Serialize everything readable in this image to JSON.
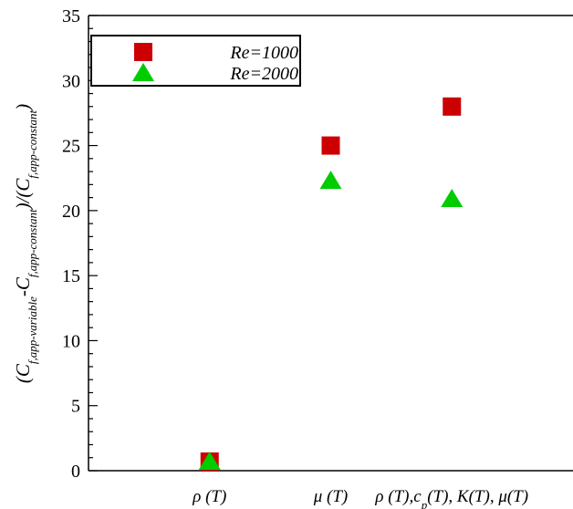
{
  "chart_data": {
    "type": "scatter",
    "categories": [
      "ρ (T)",
      "μ (T)",
      "ρ (T),c_p(T), K(T), μ(T)"
    ],
    "category_parts": [
      [
        {
          "t": "ρ (T)",
          "s": false
        }
      ],
      [
        {
          "t": "μ (T)",
          "s": false
        }
      ],
      [
        {
          "t": "ρ (T),c",
          "s": false
        },
        {
          "t": "p",
          "s": true
        },
        {
          "t": "(T), K(T), μ(T)",
          "s": false
        }
      ]
    ],
    "series": [
      {
        "name": "Re=1000",
        "marker": "square",
        "color": "#cc0000",
        "values": [
          0.7,
          25.0,
          28.0
        ]
      },
      {
        "name": "Re=2000",
        "marker": "triangle",
        "color": "#00cc00",
        "values": [
          0.7,
          22.3,
          20.9
        ]
      }
    ],
    "ylabel_parts": [
      {
        "t": "(C",
        "s": false
      },
      {
        "t": "f,app-variable",
        "s": true
      },
      {
        "t": "-C",
        "s": false
      },
      {
        "t": "f,app-constant",
        "s": true
      },
      {
        "t": ")/(C",
        "s": false
      },
      {
        "t": "f,app-constant",
        "s": true
      },
      {
        "t": ")",
        "s": false
      }
    ],
    "ylabel": "(C_f,app-variable-C_f,app-constant)/(C_f,app-constant)",
    "ylim": [
      0,
      35
    ],
    "yticks": [
      0,
      5,
      10,
      15,
      20,
      25,
      30,
      35
    ],
    "yminor_step": 1,
    "xpositions": [
      1,
      2,
      3
    ],
    "xlim": [
      0,
      4
    ],
    "grid": false,
    "legend_position": "top-left"
  }
}
